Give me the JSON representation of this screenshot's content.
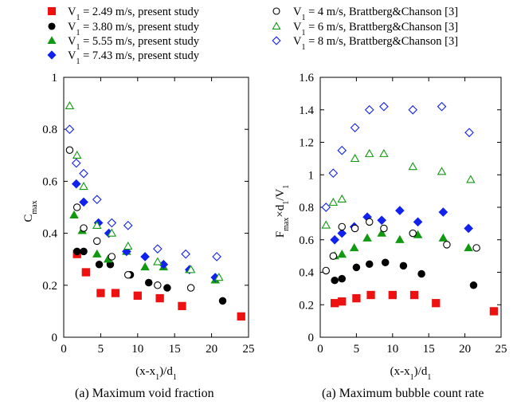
{
  "legend": {
    "items": [
      {
        "key": "s1",
        "symbol": "square",
        "color": "#ee1111",
        "filled": true,
        "v": "V",
        "sub": "1",
        "rest": " = 2.49 m/s, present study"
      },
      {
        "key": "c4",
        "symbol": "circle",
        "color": "#000000",
        "filled": false,
        "v": "V",
        "sub": "1",
        "rest": " = 4 m/s, Brattberg&Chanson [3]"
      },
      {
        "key": "s2",
        "symbol": "circle",
        "color": "#000000",
        "filled": true,
        "v": "V",
        "sub": "1",
        "rest": " = 3.80 m/s, present study"
      },
      {
        "key": "c6",
        "symbol": "triangle",
        "color": "#119911",
        "filled": false,
        "v": "V",
        "sub": "1",
        "rest": " = 6 m/s, Brattberg&Chanson [3]"
      },
      {
        "key": "s3",
        "symbol": "triangle",
        "color": "#119911",
        "filled": true,
        "v": "V",
        "sub": "1",
        "rest": " = 5.55 m/s, present study"
      },
      {
        "key": "c8",
        "symbol": "diamond",
        "color": "#1122ee",
        "filled": false,
        "v": "V",
        "sub": "1",
        "rest": " = 8 m/s, Brattberg&Chanson [3]"
      },
      {
        "key": "s4",
        "symbol": "diamond",
        "color": "#1122ee",
        "filled": true,
        "v": "V",
        "sub": "1",
        "rest": " = 7.43 m/s, present study"
      }
    ]
  },
  "chart_data": [
    {
      "type": "scatter",
      "caption": "(a) Maximum void fraction",
      "xlabel": "(x-x1)/d1",
      "ylabel": "Cmax",
      "xlim": [
        0,
        25
      ],
      "ylim": [
        0,
        1
      ],
      "xticks": [
        "0",
        "5",
        "10",
        "15",
        "20",
        "25"
      ],
      "yticks": [
        "0",
        "0.2",
        "0.4",
        "0.6",
        "0.8",
        "1"
      ],
      "series": [
        {
          "key": "s1",
          "points": [
            [
              1.8,
              0.32
            ],
            [
              3.0,
              0.25
            ],
            [
              5.0,
              0.17
            ],
            [
              7.0,
              0.17
            ],
            [
              10.0,
              0.16
            ],
            [
              13.0,
              0.15
            ],
            [
              16.0,
              0.12
            ],
            [
              24.0,
              0.08
            ]
          ]
        },
        {
          "key": "s2",
          "points": [
            [
              1.8,
              0.33
            ],
            [
              2.7,
              0.33
            ],
            [
              4.8,
              0.28
            ],
            [
              6.3,
              0.28
            ],
            [
              9.0,
              0.24
            ],
            [
              11.5,
              0.21
            ],
            [
              14.0,
              0.19
            ],
            [
              21.5,
              0.14
            ]
          ]
        },
        {
          "key": "s3",
          "points": [
            [
              1.4,
              0.47
            ],
            [
              2.5,
              0.41
            ],
            [
              4.5,
              0.32
            ],
            [
              6.0,
              0.3
            ],
            [
              8.5,
              0.33
            ],
            [
              11.0,
              0.27
            ],
            [
              13.5,
              0.27
            ],
            [
              17.0,
              0.26
            ],
            [
              20.5,
              0.22
            ]
          ]
        },
        {
          "key": "s4",
          "points": [
            [
              1.7,
              0.59
            ],
            [
              2.7,
              0.52
            ],
            [
              4.7,
              0.44
            ],
            [
              6.1,
              0.4
            ],
            [
              8.5,
              0.33
            ],
            [
              11.0,
              0.31
            ],
            [
              13.5,
              0.28
            ],
            [
              17.0,
              0.26
            ],
            [
              20.5,
              0.23
            ]
          ]
        },
        {
          "key": "c4",
          "points": [
            [
              0.8,
              0.72
            ],
            [
              1.8,
              0.5
            ],
            [
              2.7,
              0.42
            ],
            [
              4.5,
              0.37
            ],
            [
              6.5,
              0.31
            ],
            [
              8.7,
              0.24
            ],
            [
              12.7,
              0.2
            ],
            [
              17.2,
              0.19
            ]
          ]
        },
        {
          "key": "c6",
          "points": [
            [
              0.8,
              0.89
            ],
            [
              1.8,
              0.7
            ],
            [
              2.7,
              0.58
            ],
            [
              4.5,
              0.43
            ],
            [
              6.5,
              0.4
            ],
            [
              8.7,
              0.35
            ],
            [
              12.7,
              0.29
            ],
            [
              17.2,
              0.26
            ],
            [
              21.0,
              0.23
            ]
          ]
        },
        {
          "key": "c8",
          "points": [
            [
              0.8,
              0.8
            ],
            [
              1.7,
              0.67
            ],
            [
              2.7,
              0.63
            ],
            [
              4.5,
              0.53
            ],
            [
              6.5,
              0.44
            ],
            [
              8.7,
              0.43
            ],
            [
              12.7,
              0.34
            ],
            [
              16.5,
              0.32
            ],
            [
              20.7,
              0.31
            ]
          ]
        }
      ]
    },
    {
      "type": "scatter",
      "caption": "(a) Maximum bubble count rate",
      "xlabel": "(x-x1)/d1",
      "ylabel": "Fmax×d1/V1",
      "xlim": [
        0,
        25
      ],
      "ylim": [
        0,
        1.6
      ],
      "xticks": [
        "0",
        "5",
        "10",
        "15",
        "20",
        "25"
      ],
      "yticks": [
        "0",
        "0.2",
        "0.4",
        "0.6",
        "0.8",
        "1",
        "1.2",
        "1.4",
        "1.6"
      ],
      "series": [
        {
          "key": "s1",
          "points": [
            [
              2.0,
              0.21
            ],
            [
              3.0,
              0.22
            ],
            [
              5.0,
              0.24
            ],
            [
              7.0,
              0.26
            ],
            [
              10.0,
              0.26
            ],
            [
              13.0,
              0.26
            ],
            [
              16.0,
              0.21
            ],
            [
              24.0,
              0.16
            ]
          ]
        },
        {
          "key": "s2",
          "points": [
            [
              2.0,
              0.35
            ],
            [
              3.0,
              0.36
            ],
            [
              5.0,
              0.43
            ],
            [
              6.8,
              0.45
            ],
            [
              9.0,
              0.46
            ],
            [
              11.5,
              0.44
            ],
            [
              14.0,
              0.39
            ],
            [
              21.2,
              0.32
            ]
          ]
        },
        {
          "key": "s3",
          "points": [
            [
              2.0,
              0.5
            ],
            [
              3.0,
              0.51
            ],
            [
              4.7,
              0.55
            ],
            [
              6.5,
              0.61
            ],
            [
              8.5,
              0.64
            ],
            [
              11.0,
              0.6
            ],
            [
              13.5,
              0.63
            ],
            [
              17.0,
              0.61
            ],
            [
              20.5,
              0.55
            ]
          ]
        },
        {
          "key": "s4",
          "points": [
            [
              2.0,
              0.6
            ],
            [
              3.0,
              0.64
            ],
            [
              4.7,
              0.68
            ],
            [
              6.5,
              0.74
            ],
            [
              8.5,
              0.72
            ],
            [
              11.0,
              0.78
            ],
            [
              13.5,
              0.71
            ],
            [
              17.0,
              0.77
            ],
            [
              20.5,
              0.67
            ]
          ]
        },
        {
          "key": "c4",
          "points": [
            [
              0.8,
              0.41
            ],
            [
              1.8,
              0.5
            ],
            [
              3.0,
              0.68
            ],
            [
              4.8,
              0.67
            ],
            [
              6.8,
              0.71
            ],
            [
              8.8,
              0.67
            ],
            [
              12.8,
              0.64
            ],
            [
              17.5,
              0.57
            ],
            [
              21.6,
              0.55
            ]
          ]
        },
        {
          "key": "c6",
          "points": [
            [
              0.8,
              0.69
            ],
            [
              1.8,
              0.83
            ],
            [
              3.0,
              0.85
            ],
            [
              4.8,
              1.1
            ],
            [
              6.8,
              1.13
            ],
            [
              8.8,
              1.13
            ],
            [
              12.8,
              1.05
            ],
            [
              16.8,
              1.02
            ],
            [
              20.8,
              0.97
            ]
          ]
        },
        {
          "key": "c8",
          "points": [
            [
              0.8,
              0.8
            ],
            [
              1.8,
              1.01
            ],
            [
              3.0,
              1.15
            ],
            [
              4.8,
              1.29
            ],
            [
              6.8,
              1.4
            ],
            [
              8.8,
              1.42
            ],
            [
              12.8,
              1.4
            ],
            [
              16.8,
              1.42
            ],
            [
              20.6,
              1.26
            ]
          ]
        }
      ]
    }
  ]
}
